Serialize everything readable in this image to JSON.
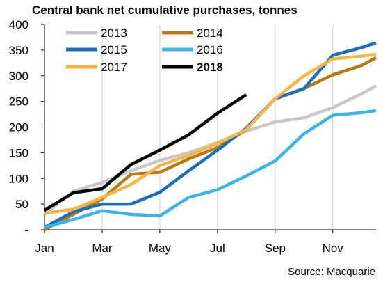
{
  "chart_data": {
    "type": "line",
    "title": "Central bank net cumulative purchases, tonnes",
    "source": "Source:  Macquarie",
    "xlabel": "",
    "ylabel": "",
    "x_tick_labels": [
      "Jan",
      "Mar",
      "May",
      "Jul",
      "Sep",
      "Nov"
    ],
    "x_tick_months": [
      0,
      2,
      4,
      6,
      8,
      10
    ],
    "xlim": [
      0,
      11.5
    ],
    "y_tick_labels": [
      "-",
      "50",
      "100",
      "150",
      "200",
      "250",
      "300",
      "350",
      "400"
    ],
    "y_tick_values": [
      0,
      50,
      100,
      150,
      200,
      250,
      300,
      350,
      400
    ],
    "ylim": [
      0,
      400
    ],
    "grid": "vertical",
    "legend_position": "top-left",
    "series": [
      {
        "name": "2013",
        "color": "#c8c8c8",
        "bold": false,
        "x": [
          0,
          1,
          2,
          3,
          4,
          5,
          6,
          7,
          8,
          9,
          10,
          11,
          11.5
        ],
        "y": [
          30,
          75,
          92,
          115,
          135,
          150,
          170,
          192,
          210,
          218,
          238,
          265,
          280
        ]
      },
      {
        "name": "2014",
        "color": "#b57a18",
        "bold": false,
        "x": [
          0,
          1,
          2,
          3,
          4,
          5,
          6,
          7,
          8,
          9,
          10,
          11,
          11.5
        ],
        "y": [
          0,
          30,
          60,
          108,
          112,
          138,
          160,
          195,
          255,
          275,
          302,
          320,
          335
        ]
      },
      {
        "name": "2015",
        "color": "#1f6db5",
        "bold": false,
        "x": [
          0,
          1,
          2,
          3,
          4,
          5,
          6,
          7,
          8,
          9,
          10,
          11,
          11.5
        ],
        "y": [
          5,
          35,
          50,
          50,
          73,
          115,
          155,
          198,
          255,
          275,
          340,
          355,
          364
        ]
      },
      {
        "name": "2016",
        "color": "#3fb3e4",
        "bold": false,
        "x": [
          0,
          1,
          2,
          3,
          4,
          5,
          6,
          7,
          8,
          9,
          10,
          11,
          11.5
        ],
        "y": [
          5,
          20,
          37,
          30,
          27,
          63,
          78,
          105,
          134,
          187,
          223,
          228,
          232
        ]
      },
      {
        "name": "2017",
        "color": "#f7b54a",
        "bold": false,
        "x": [
          0,
          1,
          2,
          3,
          4,
          5,
          6,
          7,
          8,
          9,
          10,
          11,
          11.5
        ],
        "y": [
          32,
          40,
          63,
          88,
          125,
          145,
          168,
          195,
          255,
          300,
          333,
          338,
          342
        ]
      },
      {
        "name": "2018",
        "color": "#000000",
        "bold": true,
        "x": [
          0,
          1,
          2,
          3,
          4,
          5,
          6,
          7
        ],
        "y": [
          38,
          72,
          80,
          127,
          155,
          185,
          227,
          263
        ]
      }
    ]
  }
}
